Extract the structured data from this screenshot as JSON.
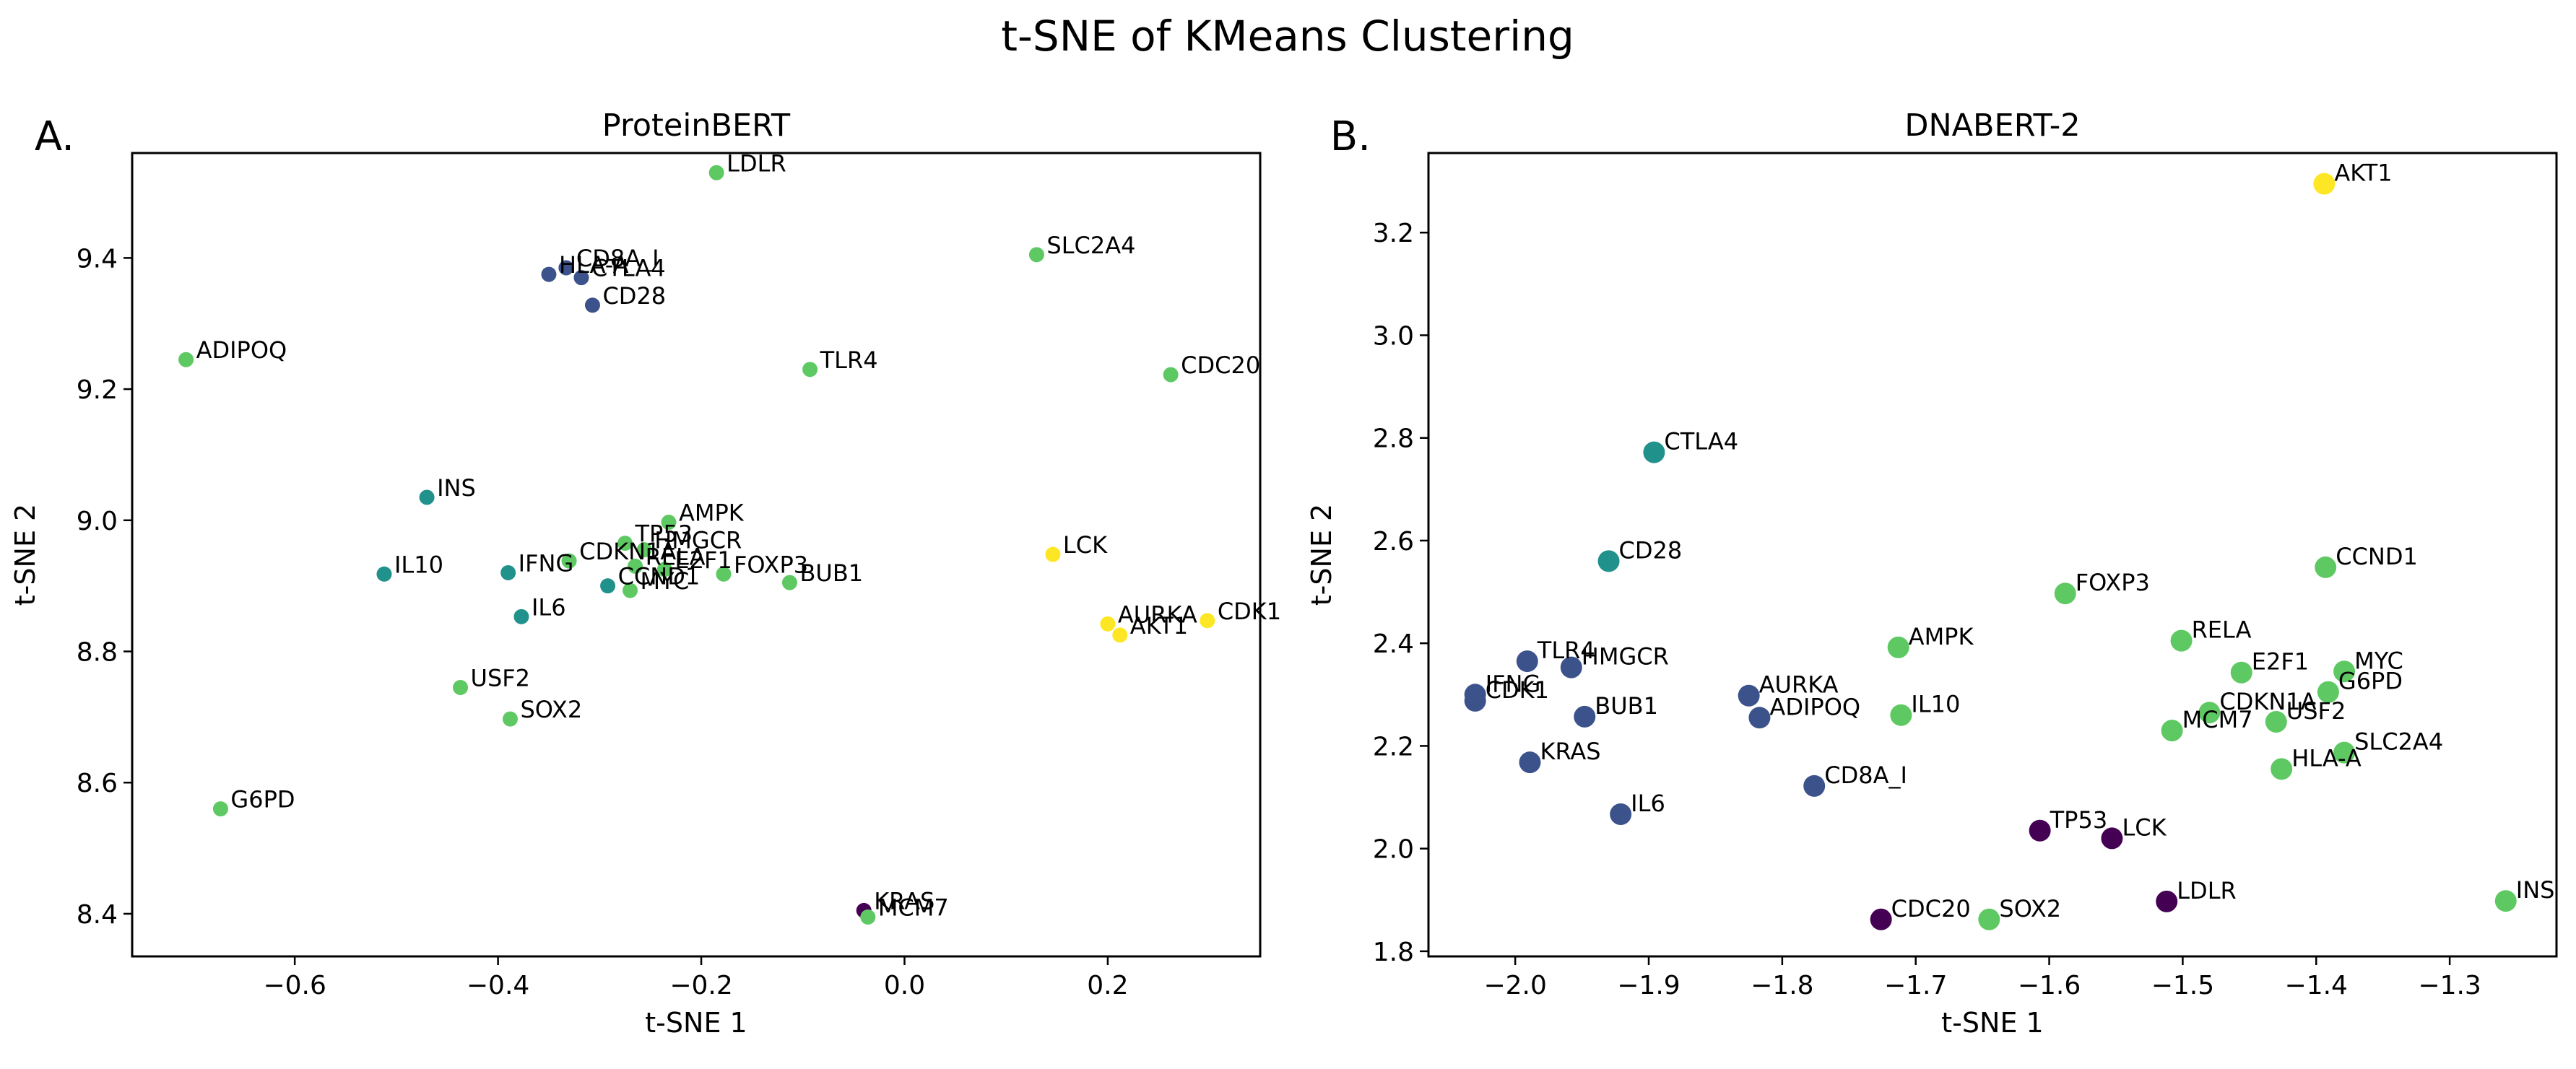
{
  "figure": {
    "title": "t-SNE of KMeans Clustering"
  },
  "colors": {
    "cluster0": "#440154",
    "cluster1": "#3b528b",
    "cluster2": "#21918c",
    "cluster3": "#5ec962",
    "cluster4": "#fde725",
    "axes": "#000000",
    "background": "#ffffff"
  },
  "chart_data": [
    {
      "type": "scatter",
      "panel_label": "A.",
      "title": "ProteinBERT",
      "xlabel": "t-SNE 1",
      "ylabel": "t-SNE 2",
      "xlim": [
        -0.76,
        0.35
      ],
      "ylim": [
        8.335,
        9.56
      ],
      "xticks": [
        -0.6,
        -0.4,
        -0.2,
        0.0,
        0.2
      ],
      "xtick_labels": [
        "−0.6",
        "−0.4",
        "−0.2",
        "0.0",
        "0.2"
      ],
      "yticks": [
        8.4,
        8.6,
        8.8,
        9.0,
        9.2,
        9.4
      ],
      "ytick_labels": [
        "8.4",
        "8.6",
        "8.8",
        "9.0",
        "9.2",
        "9.4"
      ],
      "grid": false,
      "points": [
        {
          "label": "LDLR",
          "x": -0.185,
          "y": 9.53,
          "cluster": 3
        },
        {
          "label": "SLC2A4",
          "x": 0.13,
          "y": 9.405,
          "cluster": 3
        },
        {
          "label": "CD8A_I",
          "x": -0.333,
          "y": 9.385,
          "cluster": 1
        },
        {
          "label": "HLA-A",
          "x": -0.35,
          "y": 9.375,
          "cluster": 1
        },
        {
          "label": "CTLA4",
          "x": -0.318,
          "y": 9.37,
          "cluster": 1
        },
        {
          "label": "CD28",
          "x": -0.307,
          "y": 9.328,
          "cluster": 1
        },
        {
          "label": "ADIPOQ",
          "x": -0.707,
          "y": 9.245,
          "cluster": 3
        },
        {
          "label": "TLR4",
          "x": -0.093,
          "y": 9.23,
          "cluster": 3
        },
        {
          "label": "CDC20",
          "x": 0.262,
          "y": 9.222,
          "cluster": 3
        },
        {
          "label": "INS",
          "x": -0.47,
          "y": 9.035,
          "cluster": 2
        },
        {
          "label": "AMPK",
          "x": -0.232,
          "y": 8.997,
          "cluster": 3
        },
        {
          "label": "TP53",
          "x": -0.275,
          "y": 8.965,
          "cluster": 3
        },
        {
          "label": "HMGCR",
          "x": -0.256,
          "y": 8.955,
          "cluster": 3
        },
        {
          "label": "LCK",
          "x": 0.146,
          "y": 8.948,
          "cluster": 4
        },
        {
          "label": "CDKN1A",
          "x": -0.33,
          "y": 8.938,
          "cluster": 3
        },
        {
          "label": "RELA",
          "x": -0.265,
          "y": 8.93,
          "cluster": 3
        },
        {
          "label": "E2F1",
          "x": -0.236,
          "y": 8.925,
          "cluster": 3
        },
        {
          "label": "IL10",
          "x": -0.512,
          "y": 8.918,
          "cluster": 2
        },
        {
          "label": "IFNG",
          "x": -0.39,
          "y": 8.92,
          "cluster": 2
        },
        {
          "label": "FOXP3",
          "x": -0.178,
          "y": 8.918,
          "cluster": 3
        },
        {
          "label": "BUB1",
          "x": -0.113,
          "y": 8.905,
          "cluster": 3
        },
        {
          "label": "CCND1",
          "x": -0.292,
          "y": 8.9,
          "cluster": 2
        },
        {
          "label": "MYC",
          "x": -0.27,
          "y": 8.893,
          "cluster": 3
        },
        {
          "label": "IL6",
          "x": -0.377,
          "y": 8.853,
          "cluster": 2
        },
        {
          "label": "CDK1",
          "x": 0.298,
          "y": 8.847,
          "cluster": 4
        },
        {
          "label": "AURKA",
          "x": 0.2,
          "y": 8.842,
          "cluster": 4
        },
        {
          "label": "AKT1",
          "x": 0.212,
          "y": 8.825,
          "cluster": 4
        },
        {
          "label": "USF2",
          "x": -0.437,
          "y": 8.745,
          "cluster": 3
        },
        {
          "label": "SOX2",
          "x": -0.388,
          "y": 8.697,
          "cluster": 3
        },
        {
          "label": "G6PD",
          "x": -0.673,
          "y": 8.56,
          "cluster": 3
        },
        {
          "label": "KRAS",
          "x": -0.04,
          "y": 8.405,
          "cluster": 0
        },
        {
          "label": "MCM7",
          "x": -0.036,
          "y": 8.395,
          "cluster": 3
        }
      ]
    },
    {
      "type": "scatter",
      "panel_label": "B.",
      "title": "DNABERT-2",
      "xlabel": "t-SNE 1",
      "ylabel": "t-SNE 2",
      "xlim": [
        -2.065,
        -1.22
      ],
      "ylim": [
        1.79,
        3.355
      ],
      "xticks": [
        -2.0,
        -1.9,
        -1.8,
        -1.7,
        -1.6,
        -1.5,
        -1.4,
        -1.3
      ],
      "xtick_labels": [
        "−2.0",
        "−1.9",
        "−1.8",
        "−1.7",
        "−1.6",
        "−1.5",
        "−1.4",
        "−1.3"
      ],
      "yticks": [
        1.8,
        2.0,
        2.2,
        2.4,
        2.6,
        2.8,
        3.0,
        3.2
      ],
      "ytick_labels": [
        "1.8",
        "2.0",
        "2.2",
        "2.4",
        "2.6",
        "2.8",
        "3.0",
        "3.2"
      ],
      "grid": false,
      "points": [
        {
          "label": "AKT1",
          "x": -1.394,
          "y": 3.295,
          "cluster": 4
        },
        {
          "label": "CTLA4",
          "x": -1.896,
          "y": 2.772,
          "cluster": 2
        },
        {
          "label": "CD28",
          "x": -1.93,
          "y": 2.56,
          "cluster": 2
        },
        {
          "label": "CCND1",
          "x": -1.393,
          "y": 2.548,
          "cluster": 3
        },
        {
          "label": "FOXP3",
          "x": -1.588,
          "y": 2.497,
          "cluster": 3
        },
        {
          "label": "RELA",
          "x": -1.501,
          "y": 2.405,
          "cluster": 3
        },
        {
          "label": "AMPK",
          "x": -1.713,
          "y": 2.392,
          "cluster": 3
        },
        {
          "label": "TLR4",
          "x": -1.991,
          "y": 2.365,
          "cluster": 1
        },
        {
          "label": "HMGCR",
          "x": -1.958,
          "y": 2.353,
          "cluster": 1
        },
        {
          "label": "MYC",
          "x": -1.379,
          "y": 2.345,
          "cluster": 3
        },
        {
          "label": "E2F1",
          "x": -1.456,
          "y": 2.343,
          "cluster": 3
        },
        {
          "label": "G6PD",
          "x": -1.391,
          "y": 2.305,
          "cluster": 3
        },
        {
          "label": "IFNG",
          "x": -2.03,
          "y": 2.3,
          "cluster": 1
        },
        {
          "label": "AURKA",
          "x": -1.825,
          "y": 2.298,
          "cluster": 1
        },
        {
          "label": "CDK1",
          "x": -2.03,
          "y": 2.288,
          "cluster": 1
        },
        {
          "label": "CDKN1A",
          "x": -1.48,
          "y": 2.265,
          "cluster": 3
        },
        {
          "label": "BUB1",
          "x": -1.948,
          "y": 2.257,
          "cluster": 1
        },
        {
          "label": "IL10",
          "x": -1.711,
          "y": 2.26,
          "cluster": 3
        },
        {
          "label": "ADIPOQ",
          "x": -1.817,
          "y": 2.255,
          "cluster": 1
        },
        {
          "label": "USF2",
          "x": -1.43,
          "y": 2.247,
          "cluster": 3
        },
        {
          "label": "MCM7",
          "x": -1.508,
          "y": 2.23,
          "cluster": 3
        },
        {
          "label": "SLC2A4",
          "x": -1.379,
          "y": 2.187,
          "cluster": 3
        },
        {
          "label": "KRAS",
          "x": -1.989,
          "y": 2.168,
          "cluster": 1
        },
        {
          "label": "HLA-A",
          "x": -1.426,
          "y": 2.155,
          "cluster": 3
        },
        {
          "label": "CD8A_I",
          "x": -1.776,
          "y": 2.122,
          "cluster": 1
        },
        {
          "label": "IL6",
          "x": -1.921,
          "y": 2.067,
          "cluster": 1
        },
        {
          "label": "TP53",
          "x": -1.607,
          "y": 2.035,
          "cluster": 0
        },
        {
          "label": "LCK",
          "x": -1.553,
          "y": 2.02,
          "cluster": 0
        },
        {
          "label": "LDLR",
          "x": -1.512,
          "y": 1.897,
          "cluster": 0
        },
        {
          "label": "INS",
          "x": -1.258,
          "y": 1.898,
          "cluster": 3
        },
        {
          "label": "CDC20",
          "x": -1.726,
          "y": 1.862,
          "cluster": 0
        },
        {
          "label": "SOX2",
          "x": -1.645,
          "y": 1.862,
          "cluster": 3
        }
      ]
    }
  ]
}
